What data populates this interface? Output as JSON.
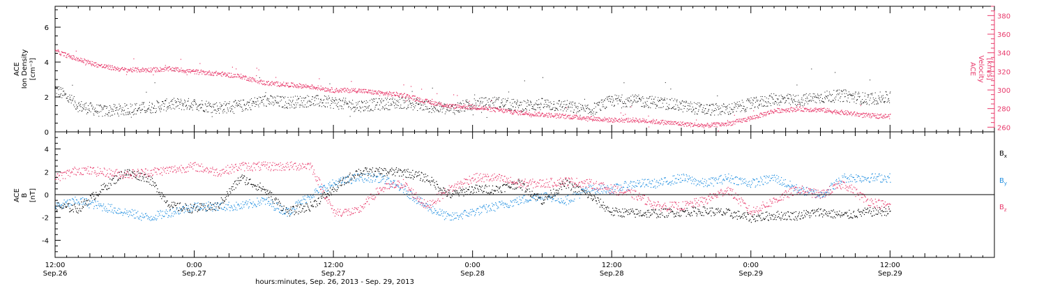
{
  "chart_data": [
    {
      "type": "scatter",
      "panel": "top",
      "ylabel": [
        "ACE",
        "Ion Density",
        "[cm⁻³]"
      ],
      "ylabel_right": [
        "ACE",
        "Velocity",
        "[km/s]"
      ],
      "ylim": [
        0,
        7.2
      ],
      "y_ticks": [
        "0",
        "2",
        "4",
        "6"
      ],
      "ylim_right": [
        255,
        390
      ],
      "y_ticks_right": [
        "260",
        "280",
        "300",
        "320",
        "340",
        "360",
        "380"
      ],
      "colors": {
        "density": "#000000",
        "velocity": "#e8386a"
      },
      "series": [
        {
          "name": "Ion Density",
          "color": "#000000",
          "hours": [
            0,
            2,
            4,
            6,
            8,
            10,
            12,
            14,
            16,
            18,
            20,
            22,
            24,
            26,
            28,
            30,
            32,
            34,
            36,
            38,
            40,
            42,
            44,
            46,
            48,
            50,
            52,
            54,
            56,
            58,
            60,
            62,
            64,
            66,
            68,
            70,
            72
          ],
          "values": [
            2.5,
            1.5,
            1.2,
            1.3,
            1.4,
            1.6,
            1.6,
            1.4,
            1.5,
            1.8,
            1.7,
            1.8,
            1.7,
            1.5,
            1.6,
            1.7,
            1.5,
            1.3,
            1.6,
            1.7,
            1.5,
            1.6,
            1.5,
            1.2,
            1.8,
            1.8,
            1.7,
            1.5,
            1.3,
            1.3,
            1.6,
            1.9,
            1.8,
            2.0,
            2.1,
            1.9,
            2.0
          ]
        },
        {
          "name": "Velocity",
          "color": "#e8386a",
          "hours": [
            0,
            2,
            4,
            6,
            8,
            10,
            12,
            14,
            16,
            18,
            20,
            22,
            24,
            26,
            28,
            30,
            32,
            34,
            36,
            38,
            40,
            42,
            44,
            46,
            48,
            50,
            52,
            54,
            56,
            58,
            60,
            62,
            64,
            66,
            68,
            70,
            72
          ],
          "values": [
            342,
            333,
            326,
            322,
            322,
            323,
            320,
            318,
            315,
            308,
            306,
            304,
            300,
            300,
            297,
            295,
            288,
            283,
            282,
            279,
            276,
            274,
            272,
            270,
            268,
            268,
            266,
            264,
            262,
            264,
            270,
            278,
            280,
            279,
            276,
            273,
            272
          ]
        }
      ]
    },
    {
      "type": "scatter",
      "panel": "bottom",
      "ylabel": [
        "ACE",
        "B",
        "[nT]"
      ],
      "ylim": [
        -5.5,
        5.5
      ],
      "y_ticks": [
        "-4",
        "-2",
        "0",
        "2",
        "4"
      ],
      "legend": [
        "Bx",
        "By",
        "Bz"
      ],
      "series": [
        {
          "name": "Bx",
          "color": "#000000",
          "hours": [
            0,
            2,
            4,
            6,
            8,
            10,
            12,
            14,
            16,
            18,
            20,
            22,
            24,
            26,
            28,
            30,
            32,
            34,
            36,
            38,
            40,
            42,
            44,
            46,
            48,
            50,
            52,
            54,
            56,
            58,
            60,
            62,
            64,
            66,
            68,
            70,
            72
          ],
          "values": [
            -1.0,
            -1.2,
            0.5,
            2.0,
            1.5,
            -1.0,
            -1.2,
            -1.0,
            1.5,
            0.5,
            -1.5,
            -1.0,
            0.5,
            2.0,
            2.0,
            2.0,
            1.5,
            0.0,
            0.5,
            0.5,
            1.0,
            -0.5,
            1.0,
            0.0,
            -1.5,
            -1.6,
            -1.6,
            -1.5,
            -1.4,
            -1.6,
            -2.0,
            -1.8,
            -1.8,
            -1.5,
            -1.8,
            -1.5,
            -1.4
          ]
        },
        {
          "name": "By",
          "color": "#1f8ee0",
          "hours": [
            0,
            2,
            4,
            6,
            8,
            10,
            12,
            14,
            16,
            18,
            20,
            22,
            24,
            26,
            28,
            30,
            32,
            34,
            36,
            38,
            40,
            42,
            44,
            46,
            48,
            50,
            52,
            54,
            56,
            58,
            60,
            62,
            64,
            66,
            68,
            70,
            72
          ],
          "values": [
            -1.0,
            -0.5,
            -1.0,
            -1.5,
            -2.0,
            -1.5,
            -1.0,
            -1.0,
            -1.0,
            -0.5,
            -1.5,
            0.0,
            1.0,
            1.5,
            1.5,
            0.5,
            -1.0,
            -2.0,
            -1.5,
            -1.0,
            -0.5,
            0.0,
            -0.5,
            0.5,
            0.5,
            1.0,
            1.0,
            1.5,
            1.0,
            1.5,
            1.0,
            1.5,
            0.5,
            0.0,
            1.5,
            1.5,
            1.5
          ]
        },
        {
          "name": "Bz",
          "color": "#e8386a",
          "hours": [
            0,
            2,
            4,
            6,
            8,
            10,
            12,
            14,
            16,
            18,
            20,
            22,
            24,
            26,
            28,
            30,
            32,
            34,
            36,
            38,
            40,
            42,
            44,
            46,
            48,
            50,
            52,
            54,
            56,
            58,
            60,
            62,
            64,
            66,
            68,
            70,
            72
          ],
          "values": [
            1.5,
            2.2,
            2.0,
            1.8,
            2.0,
            2.2,
            2.5,
            2.0,
            2.5,
            2.5,
            2.5,
            2.6,
            -1.5,
            -1.5,
            0.5,
            1.0,
            -1.0,
            0.5,
            1.5,
            1.5,
            1.0,
            1.0,
            1.2,
            1.0,
            0.5,
            0.0,
            -1.0,
            -1.0,
            -0.5,
            0.5,
            -1.5,
            -0.5,
            0.5,
            0.0,
            1.0,
            -0.5,
            -1.0
          ]
        }
      ]
    }
  ],
  "x_axis": {
    "ticks": [
      {
        "hours": 0,
        "time": "12:00",
        "date": "Sep.26"
      },
      {
        "hours": 12,
        "time": "0:00",
        "date": "Sep.27"
      },
      {
        "hours": 24,
        "time": "12:00",
        "date": "Sep.27"
      },
      {
        "hours": 36,
        "time": "0:00",
        "date": "Sep.28"
      },
      {
        "hours": 48,
        "time": "12:00",
        "date": "Sep.28"
      },
      {
        "hours": 60,
        "time": "0:00",
        "date": "Sep.29"
      },
      {
        "hours": 72,
        "time": "12:00",
        "date": "Sep.29"
      }
    ],
    "xlim": [
      0,
      81
    ],
    "xlabel": "hours:minutes, Sep. 26, 2013 - Sep. 29, 2013"
  },
  "legend_labels": {
    "bx": "B",
    "bx_sub": "x",
    "by": "B",
    "by_sub": "y",
    "bz": "B",
    "bz_sub": "z"
  }
}
